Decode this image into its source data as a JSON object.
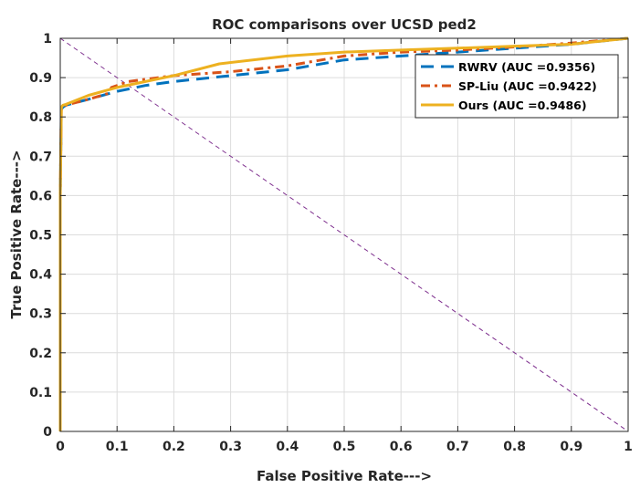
{
  "chart_data": {
    "type": "line",
    "title": "ROC comparisons over UCSD ped2",
    "xlabel": "False Positive Rate--->",
    "ylabel": "True Positive Rate--->",
    "xlim": [
      0,
      1
    ],
    "ylim": [
      0,
      1
    ],
    "x_ticks": [
      "0",
      "0.1",
      "0.2",
      "0.3",
      "0.4",
      "0.5",
      "0.6",
      "0.7",
      "0.8",
      "0.9",
      "1"
    ],
    "y_ticks": [
      "0",
      "0.1",
      "0.2",
      "0.3",
      "0.4",
      "0.5",
      "0.6",
      "0.7",
      "0.8",
      "0.9",
      "1"
    ],
    "grid": true,
    "legend_position": "top-right",
    "reference_line": {
      "x": [
        0,
        1
      ],
      "y": [
        1,
        0
      ],
      "color": "#7E2F8E",
      "style": "dashed"
    },
    "series": [
      {
        "name": "RWRV (AUC =0.9356)",
        "color": "#0072BD",
        "style": "dash",
        "x": [
          0,
          0,
          0.002,
          0.005,
          0.01,
          0.05,
          0.1,
          0.15,
          0.2,
          0.3,
          0.4,
          0.5,
          0.6,
          0.7,
          0.8,
          0.9,
          1.0
        ],
        "y": [
          0,
          0.6,
          0.82,
          0.825,
          0.83,
          0.845,
          0.865,
          0.88,
          0.89,
          0.905,
          0.92,
          0.945,
          0.955,
          0.965,
          0.975,
          0.985,
          1.0
        ]
      },
      {
        "name": "SP-Liu (AUC =0.9422)",
        "color": "#D95319",
        "style": "dashdot",
        "x": [
          0,
          0,
          0.002,
          0.005,
          0.01,
          0.05,
          0.085,
          0.09,
          0.12,
          0.2,
          0.3,
          0.4,
          0.5,
          0.6,
          0.7,
          0.8,
          0.9,
          1.0
        ],
        "y": [
          0,
          0.6,
          0.825,
          0.825,
          0.83,
          0.845,
          0.86,
          0.875,
          0.89,
          0.905,
          0.915,
          0.93,
          0.955,
          0.965,
          0.97,
          0.978,
          0.988,
          1.0
        ]
      },
      {
        "name": "Ours (AUC =0.9486)",
        "color": "#EDB120",
        "style": "solid",
        "x": [
          0,
          0,
          0.002,
          0.005,
          0.01,
          0.05,
          0.1,
          0.2,
          0.28,
          0.4,
          0.5,
          0.6,
          0.7,
          0.8,
          0.9,
          1.0
        ],
        "y": [
          0,
          0.6,
          0.825,
          0.83,
          0.832,
          0.855,
          0.875,
          0.905,
          0.935,
          0.955,
          0.965,
          0.97,
          0.975,
          0.98,
          0.985,
          1.0
        ]
      }
    ]
  }
}
